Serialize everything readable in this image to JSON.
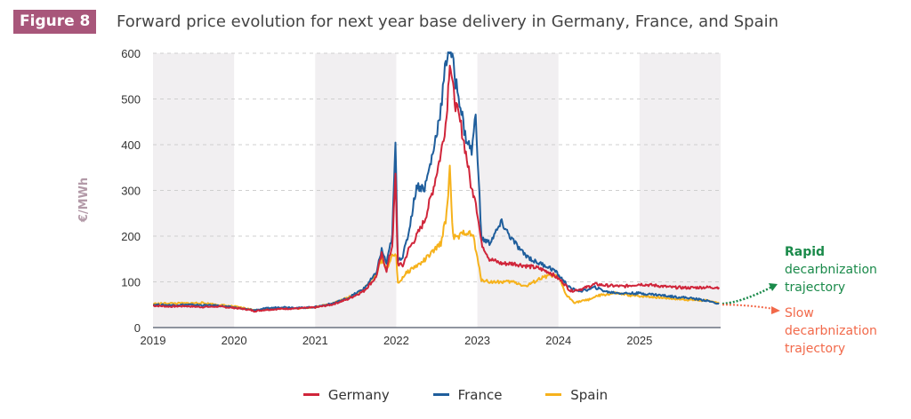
{
  "figure": {
    "badge": "Figure 8",
    "title": "Forward price evolution for next year base delivery in Germany, France, and Spain",
    "badge_color": "#a8567a"
  },
  "chart_data": {
    "type": "line",
    "title": "Forward price evolution for next year base delivery in Germany, France, and Spain",
    "xlabel": "",
    "ylabel": "€/MWh",
    "xlim": [
      2019.0,
      2026.0
    ],
    "ylim": [
      0,
      600
    ],
    "yticks": [
      0,
      100,
      200,
      300,
      400,
      500,
      600
    ],
    "xticks": [
      2019,
      2020,
      2021,
      2022,
      2023,
      2024,
      2025
    ],
    "grid": "horizontal dashed",
    "shaded_years": [
      2019,
      2021,
      2023,
      2025
    ],
    "legend_position": "bottom",
    "series": [
      {
        "name": "Germany",
        "color": "#d0253a",
        "x": [
          2019.0,
          2019.2,
          2019.4,
          2019.6,
          2019.8,
          2020.0,
          2020.15,
          2020.25,
          2020.4,
          2020.6,
          2020.8,
          2021.0,
          2021.2,
          2021.4,
          2021.6,
          2021.75,
          2021.82,
          2021.88,
          2021.95,
          2021.99,
          2022.02,
          2022.08,
          2022.15,
          2022.25,
          2022.35,
          2022.45,
          2022.55,
          2022.62,
          2022.66,
          2022.7,
          2022.74,
          2022.8,
          2022.87,
          2022.93,
          2022.97,
          2023.05,
          2023.15,
          2023.3,
          2023.45,
          2023.6,
          2023.75,
          2023.9,
          2024.05,
          2024.15,
          2024.3,
          2024.45,
          2024.6,
          2024.8,
          2025.0,
          2025.2,
          2025.4,
          2025.6,
          2025.8,
          2025.98
        ],
        "y": [
          48,
          46,
          47,
          45,
          46,
          43,
          40,
          36,
          39,
          41,
          42,
          44,
          50,
          62,
          80,
          110,
          160,
          125,
          180,
          330,
          140,
          135,
          170,
          200,
          235,
          300,
          380,
          460,
          590,
          520,
          480,
          440,
          370,
          300,
          290,
          185,
          150,
          140,
          140,
          135,
          130,
          120,
          100,
          80,
          85,
          95,
          92,
          90,
          95,
          92,
          88,
          87,
          88,
          88
        ]
      },
      {
        "name": "France",
        "color": "#1f5e9c",
        "x": [
          2019.0,
          2019.2,
          2019.4,
          2019.6,
          2019.8,
          2020.0,
          2020.15,
          2020.25,
          2020.4,
          2020.6,
          2020.8,
          2021.0,
          2021.2,
          2021.4,
          2021.6,
          2021.75,
          2021.82,
          2021.88,
          2021.95,
          2021.99,
          2022.02,
          2022.08,
          2022.15,
          2022.25,
          2022.35,
          2022.45,
          2022.55,
          2022.6,
          2022.64,
          2022.68,
          2022.73,
          2022.78,
          2022.85,
          2022.93,
          2022.98,
          2023.05,
          2023.15,
          2023.3,
          2023.4,
          2023.55,
          2023.7,
          2023.85,
          2023.95,
          2024.05,
          2024.15,
          2024.3,
          2024.45,
          2024.6,
          2024.8,
          2025.0,
          2025.2,
          2025.4,
          2025.6,
          2025.8,
          2025.98
        ],
        "y": [
          50,
          49,
          50,
          49,
          48,
          44,
          40,
          38,
          42,
          45,
          43,
          45,
          52,
          64,
          85,
          118,
          170,
          140,
          200,
          405,
          150,
          155,
          205,
          310,
          305,
          380,
          480,
          560,
          610,
          600,
          540,
          500,
          420,
          385,
          465,
          195,
          185,
          230,
          200,
          165,
          145,
          135,
          125,
          105,
          85,
          80,
          88,
          78,
          75,
          75,
          72,
          68,
          65,
          60,
          52
        ]
      },
      {
        "name": "Spain",
        "color": "#f6b21c",
        "x": [
          2019.0,
          2019.2,
          2019.4,
          2019.6,
          2019.8,
          2020.0,
          2020.15,
          2020.25,
          2020.4,
          2020.6,
          2020.8,
          2021.0,
          2021.2,
          2021.4,
          2021.6,
          2021.75,
          2021.82,
          2021.88,
          2021.95,
          2022.0,
          2022.02,
          2022.1,
          2022.2,
          2022.3,
          2022.45,
          2022.55,
          2022.62,
          2022.66,
          2022.7,
          2022.75,
          2022.85,
          2022.95,
          2023.0,
          2023.05,
          2023.15,
          2023.3,
          2023.45,
          2023.6,
          2023.75,
          2023.9,
          2024.0,
          2024.1,
          2024.2,
          2024.35,
          2024.5,
          2024.7,
          2024.9,
          2025.1,
          2025.3,
          2025.5,
          2025.7,
          2025.9,
          2025.98
        ],
        "y": [
          52,
          53,
          53,
          54,
          50,
          46,
          42,
          38,
          40,
          42,
          42,
          45,
          52,
          65,
          85,
          115,
          150,
          130,
          155,
          160,
          95,
          115,
          130,
          140,
          165,
          185,
          245,
          350,
          200,
          195,
          210,
          200,
          150,
          105,
          100,
          100,
          100,
          90,
          105,
          115,
          110,
          70,
          55,
          60,
          70,
          75,
          70,
          68,
          65,
          62,
          60,
          58,
          52
        ]
      }
    ],
    "annotations": [
      {
        "text_lines": [
          "Rapid",
          "decarbnization",
          "trajectory"
        ],
        "color": "#1a8a4a",
        "direction": "up"
      },
      {
        "text_lines": [
          "Slow",
          "decarbnization",
          "trajectory"
        ],
        "color": "#f2694a",
        "direction": "down"
      }
    ]
  },
  "legend": [
    {
      "name": "Germany",
      "color": "#d0253a"
    },
    {
      "name": "France",
      "color": "#1f5e9c"
    },
    {
      "name": "Spain",
      "color": "#f6b21c"
    }
  ]
}
